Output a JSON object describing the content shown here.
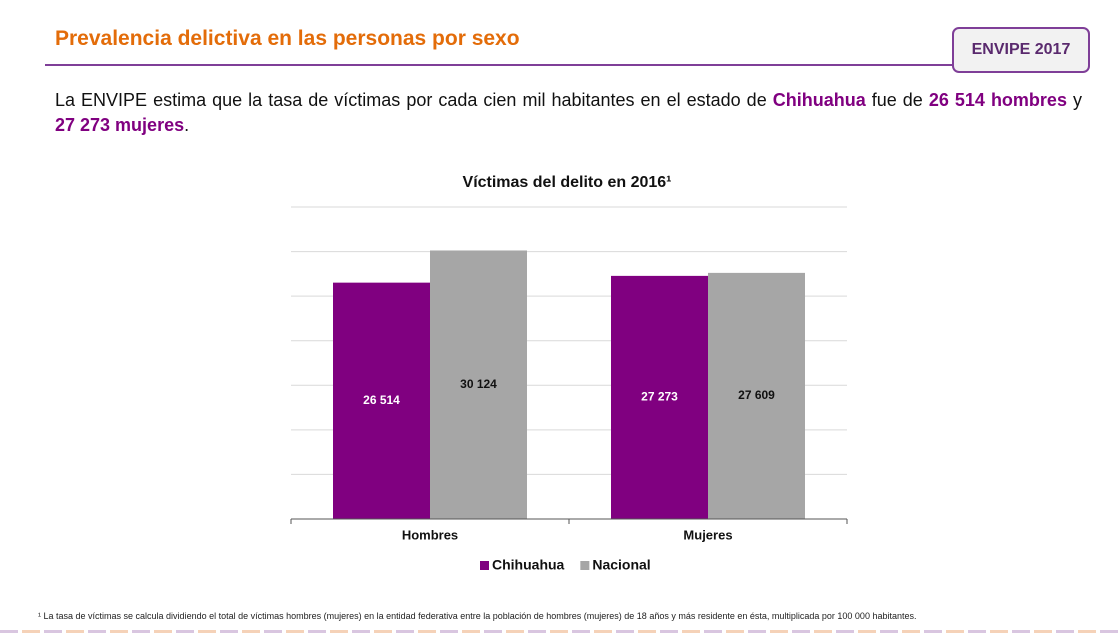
{
  "header": {
    "title": "Prevalencia delictiva en las personas por sexo",
    "badge": "ENVIPE 2017"
  },
  "intro": [
    {
      "text": "La ENVIPE estima que la tasa de víctimas por cada cien mil habitantes en el estado de ",
      "bold": false
    },
    {
      "text": "Chihuahua",
      "bold": true
    },
    {
      "text": " fue de ",
      "bold": false
    },
    {
      "text": "26 514 hombres",
      "bold": true
    },
    {
      "text": " y ",
      "bold": false
    },
    {
      "text": "27 273 mujeres",
      "bold": true
    },
    {
      "text": ".",
      "bold": false
    }
  ],
  "chart_data": {
    "type": "bar",
    "title": "Víctimas del delito en 2016¹",
    "categories": [
      "Hombres",
      "Mujeres"
    ],
    "series": [
      {
        "name": "Chihuahua",
        "color": "#800080",
        "values": [
          26514,
          27273
        ],
        "value_labels": [
          "26 514",
          "27 273"
        ]
      },
      {
        "name": "Nacional",
        "color": "#a6a6a6",
        "values": [
          30124,
          27609
        ],
        "value_labels": [
          "30 124",
          "27 609"
        ]
      }
    ],
    "ylim": [
      0,
      35000
    ],
    "yticks": [
      0,
      5000,
      10000,
      15000,
      20000,
      25000,
      30000,
      35000
    ],
    "grid": true,
    "legend": "bottom"
  },
  "footnote": "¹ La tasa de víctimas se calcula dividiendo el total de víctimas hombres (mujeres) en la entidad federativa entre la población de hombres (mujeres) de 18 años y más residente en ésta, multiplicada por 100 000 habitantes."
}
